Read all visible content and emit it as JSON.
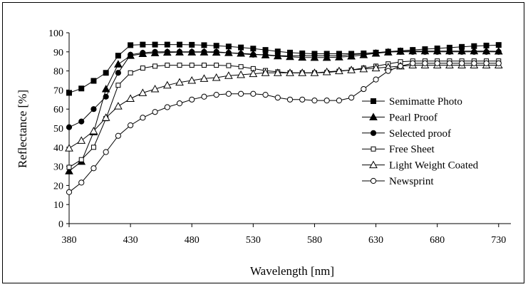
{
  "chart_data": {
    "type": "line",
    "title": "",
    "xlabel": "Wavelength [nm]",
    "ylabel": "Reflectance [%]",
    "xlim": [
      380,
      740
    ],
    "ylim": [
      0,
      100
    ],
    "xticks": [
      380,
      430,
      480,
      530,
      580,
      630,
      680,
      730
    ],
    "yticks": [
      0,
      10,
      20,
      30,
      40,
      50,
      60,
      70,
      80,
      90,
      100
    ],
    "grid": false,
    "legend_position": "right",
    "x": [
      380,
      390,
      400,
      410,
      420,
      430,
      440,
      450,
      460,
      470,
      480,
      490,
      500,
      510,
      520,
      530,
      540,
      550,
      560,
      570,
      580,
      590,
      600,
      610,
      620,
      630,
      640,
      650,
      660,
      670,
      680,
      690,
      700,
      710,
      720,
      730
    ],
    "series": [
      {
        "name": "Semimatte Photo",
        "marker": "square-filled",
        "values": [
          68.5,
          70.8,
          74.8,
          79,
          88,
          93.5,
          93.8,
          93.8,
          93.8,
          93.8,
          93.7,
          93.5,
          93.2,
          92.8,
          92.3,
          91.7,
          91,
          90.2,
          89.6,
          89.2,
          89,
          89,
          89,
          89,
          89.2,
          89.6,
          90.1,
          90.6,
          91,
          91.4,
          91.8,
          92.2,
          92.6,
          93,
          93.3,
          93.6
        ]
      },
      {
        "name": "Pearl Proof",
        "marker": "triangle-filled",
        "values": [
          27.5,
          32.5,
          48,
          70.5,
          83.5,
          88,
          89,
          89.4,
          89.7,
          89.8,
          89.8,
          89.8,
          89.7,
          89.5,
          89.2,
          88.8,
          88.3,
          87.8,
          87.4,
          87.1,
          87,
          87,
          87.2,
          87.7,
          88.4,
          89.2,
          89.8,
          90.2,
          90.4,
          90.4,
          90.4,
          90.4,
          90.4,
          90.4,
          90.4,
          90.3
        ]
      },
      {
        "name": "Selected proof",
        "marker": "circle-filled",
        "values": [
          50.5,
          53.5,
          60,
          66.5,
          79,
          88.5,
          89.5,
          90,
          90,
          90,
          90,
          90,
          90,
          89.5,
          89,
          88.5,
          88.5,
          88,
          88,
          88,
          88,
          88,
          88,
          88.5,
          89,
          89.5,
          90,
          90,
          90,
          90,
          90,
          90,
          90,
          90,
          90,
          90
        ]
      },
      {
        "name": "Free Sheet",
        "marker": "square-open",
        "values": [
          29.5,
          33.5,
          40,
          55,
          72.5,
          79,
          81.5,
          82.5,
          83,
          83,
          83,
          83,
          83,
          82.8,
          82.2,
          81.2,
          80.2,
          79.5,
          79,
          79,
          79,
          79.2,
          79.8,
          80.5,
          81.5,
          82.5,
          83.7,
          84.8,
          85.2,
          85.2,
          85.2,
          85.2,
          85.2,
          85.2,
          85.2,
          85.2
        ]
      },
      {
        "name": "Light Weight Coated",
        "marker": "triangle-open",
        "values": [
          39.5,
          43.5,
          48.5,
          55.5,
          61.5,
          65.5,
          68.5,
          70.5,
          72.5,
          74,
          75,
          76,
          76.5,
          77.5,
          78,
          78.5,
          79,
          79,
          79,
          79,
          79,
          79.5,
          80,
          80.5,
          81,
          81.5,
          82,
          82.5,
          83,
          83,
          83,
          83,
          83,
          83,
          83,
          83
        ]
      },
      {
        "name": "Newsprint",
        "marker": "circle-open",
        "values": [
          16.5,
          21.5,
          29,
          37.5,
          46,
          51.5,
          55.5,
          58.5,
          61,
          63,
          65,
          66.5,
          67.5,
          68,
          68,
          68,
          67.5,
          66,
          65,
          65,
          64.5,
          64.5,
          64.5,
          66,
          70.5,
          75.5,
          80,
          82.5,
          84,
          84,
          84,
          84,
          84,
          84,
          84,
          84
        ]
      }
    ]
  }
}
